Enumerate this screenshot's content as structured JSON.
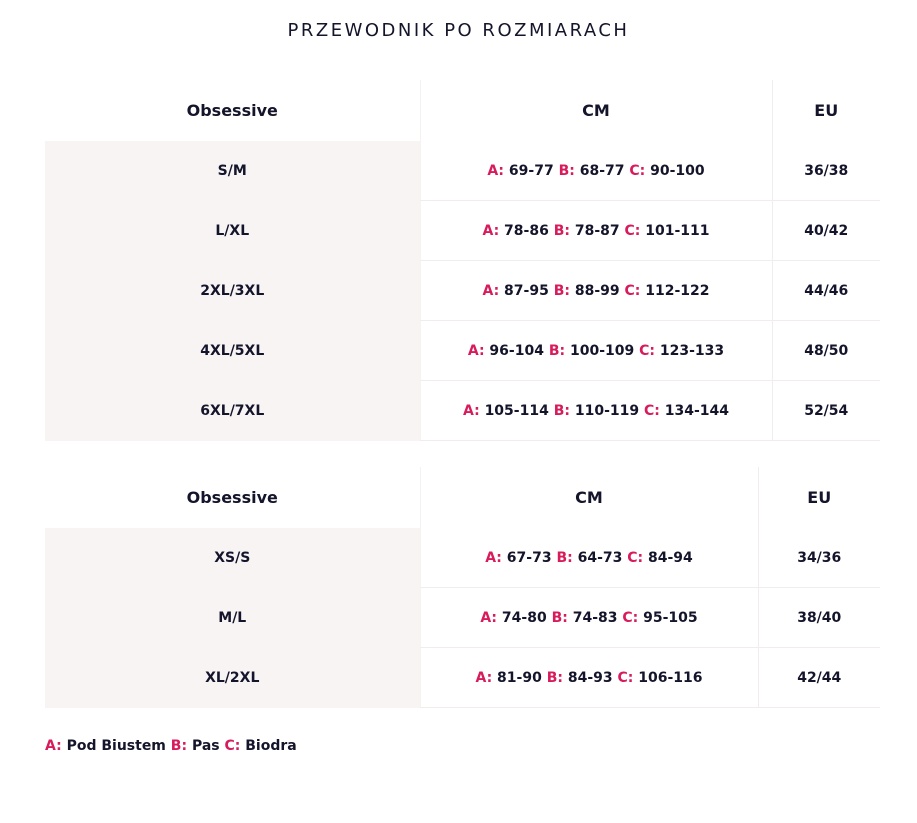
{
  "title": "PRZEWODNIK PO ROZMIARACH",
  "colors": {
    "accent": "#d81b5a",
    "text": "#14142b",
    "size_column_bg": "#f8f4f4"
  },
  "tables": [
    {
      "headers": [
        "Obsessive",
        "CM",
        "EU"
      ],
      "rows": [
        {
          "size": "S/M",
          "cm": [
            {
              "l": "A:",
              "v": "69-77"
            },
            {
              "l": "B:",
              "v": "68-77"
            },
            {
              "l": "C:",
              "v": "90-100"
            }
          ],
          "eu": "36/38"
        },
        {
          "size": "L/XL",
          "cm": [
            {
              "l": "A:",
              "v": "78-86"
            },
            {
              "l": "B:",
              "v": "78-87"
            },
            {
              "l": "C:",
              "v": "101-111"
            }
          ],
          "eu": "40/42"
        },
        {
          "size": "2XL/3XL",
          "cm": [
            {
              "l": "A:",
              "v": "87-95"
            },
            {
              "l": "B:",
              "v": "88-99"
            },
            {
              "l": "C:",
              "v": "112-122"
            }
          ],
          "eu": "44/46"
        },
        {
          "size": "4XL/5XL",
          "cm": [
            {
              "l": "A:",
              "v": "96-104"
            },
            {
              "l": "B:",
              "v": "100-109"
            },
            {
              "l": "C:",
              "v": "123-133"
            }
          ],
          "eu": "48/50"
        },
        {
          "size": "6XL/7XL",
          "cm": [
            {
              "l": "A:",
              "v": "105-114"
            },
            {
              "l": "B:",
              "v": "110-119"
            },
            {
              "l": "C:",
              "v": "134-144"
            }
          ],
          "eu": "52/54"
        }
      ]
    },
    {
      "headers": [
        "Obsessive",
        "CM",
        "EU"
      ],
      "rows": [
        {
          "size": "XS/S",
          "cm": [
            {
              "l": "A:",
              "v": "67-73"
            },
            {
              "l": "B:",
              "v": "64-73"
            },
            {
              "l": "C:",
              "v": "84-94"
            }
          ],
          "eu": "34/36"
        },
        {
          "size": "M/L",
          "cm": [
            {
              "l": "A:",
              "v": "74-80"
            },
            {
              "l": "B:",
              "v": "74-83"
            },
            {
              "l": "C:",
              "v": "95-105"
            }
          ],
          "eu": "38/40"
        },
        {
          "size": "XL/2XL",
          "cm": [
            {
              "l": "A:",
              "v": "81-90"
            },
            {
              "l": "B:",
              "v": "84-93"
            },
            {
              "l": "C:",
              "v": "106-116"
            }
          ],
          "eu": "42/44"
        }
      ]
    }
  ],
  "legend": [
    {
      "l": "A:",
      "v": "Pod Biustem"
    },
    {
      "l": "B:",
      "v": "Pas"
    },
    {
      "l": "C:",
      "v": "Biodra"
    }
  ]
}
